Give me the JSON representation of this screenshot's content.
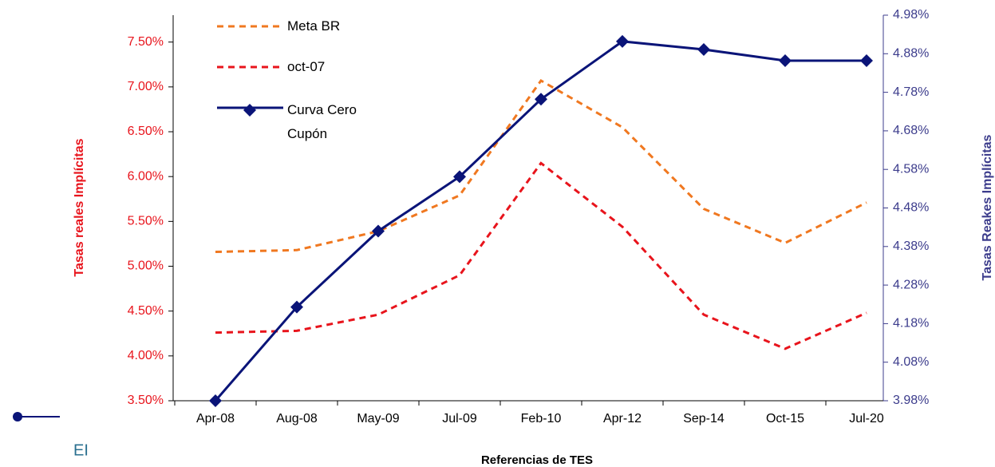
{
  "chart_data": {
    "type": "line",
    "categories": [
      "Apr-08",
      "Aug-08",
      "May-09",
      "Jul-09",
      "Feb-10",
      "Apr-12",
      "Sep-14",
      "Oct-15",
      "Jul-20"
    ],
    "series": [
      {
        "name": "Meta BR",
        "color": "#f07820",
        "dash": true,
        "axis": "y",
        "values": [
          5.16,
          5.18,
          5.39,
          5.79,
          7.07,
          6.55,
          5.64,
          5.26,
          5.71
        ]
      },
      {
        "name": "oct-07",
        "color": "#e8141c",
        "dash": true,
        "axis": "y",
        "values": [
          4.26,
          4.28,
          4.46,
          4.9,
          6.15,
          5.44,
          4.46,
          4.08,
          4.48
        ]
      },
      {
        "name": "Curva Cero Cupón",
        "color": "#0a1478",
        "marker": "diamond",
        "axis": "y2",
        "values": [
          3.98,
          4.223,
          4.42,
          4.561,
          4.762,
          4.912,
          4.891,
          4.862,
          4.862
        ]
      }
    ],
    "ylabel": "Tasas reales Implícitas",
    "y2label": "Tasas Reakes Implícitas",
    "xlabel": "Referencias de TES",
    "ylim": [
      3.5,
      7.8
    ],
    "yticks": [
      {
        "value": 3.5,
        "label": "3.50%"
      },
      {
        "value": 4.0,
        "label": "4.00%"
      },
      {
        "value": 4.5,
        "label": "4.50%"
      },
      {
        "value": 5.0,
        "label": "5.00%"
      },
      {
        "value": 5.5,
        "label": "5.50%"
      },
      {
        "value": 6.0,
        "label": "6.00%"
      },
      {
        "value": 6.5,
        "label": "6.50%"
      },
      {
        "value": 7.0,
        "label": "7.00%"
      },
      {
        "value": 7.5,
        "label": "7.50%"
      }
    ],
    "y2lim": [
      3.98,
      4.98
    ],
    "y2ticks": [
      {
        "value": 3.98,
        "label": "3.98%"
      },
      {
        "value": 4.08,
        "label": "4.08%"
      },
      {
        "value": 4.18,
        "label": "4.18%"
      },
      {
        "value": 4.28,
        "label": "4.28%"
      },
      {
        "value": 4.38,
        "label": "4.38%"
      },
      {
        "value": 4.48,
        "label": "4.48%"
      },
      {
        "value": 4.58,
        "label": "4.58%"
      },
      {
        "value": 4.68,
        "label": "4.68%"
      },
      {
        "value": 4.78,
        "label": "4.78%"
      },
      {
        "value": 4.88,
        "label": "4.88%"
      },
      {
        "value": 4.98,
        "label": "4.98%"
      }
    ],
    "ycolor": "#e8141c",
    "y2color": "#3c3c8c",
    "annotations": [
      "EI"
    ]
  }
}
